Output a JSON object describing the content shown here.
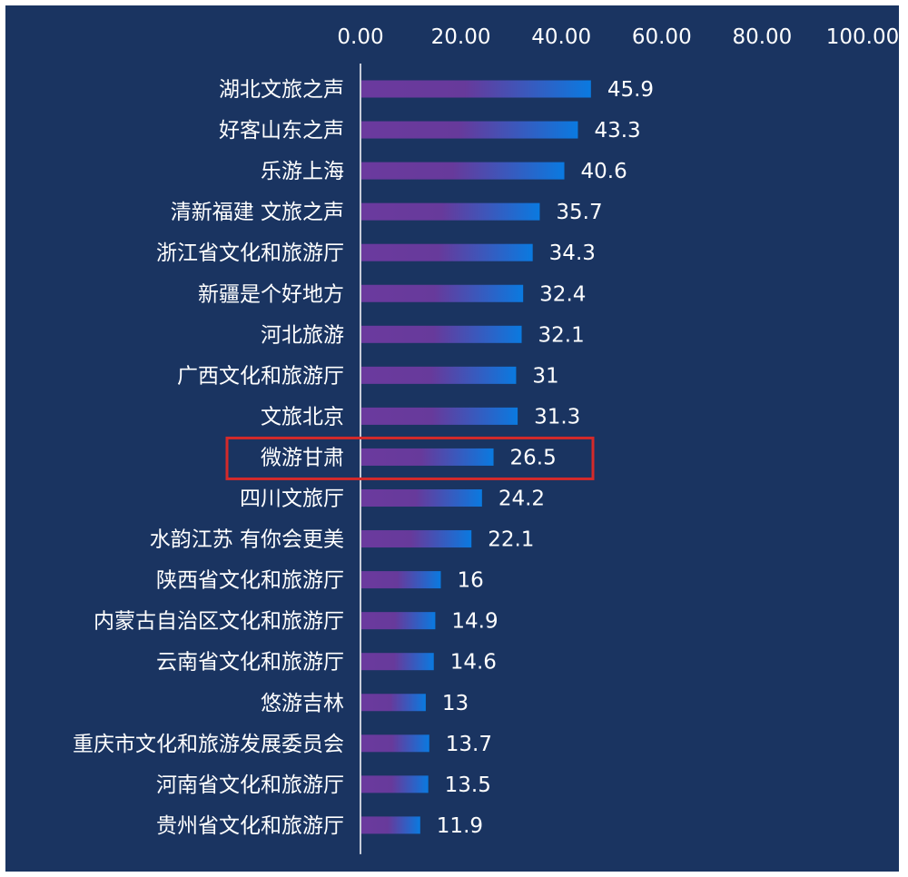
{
  "chart_data": {
    "type": "bar",
    "orientation": "horizontal",
    "title": "",
    "xlabel": "",
    "ylabel": "",
    "xlim": [
      0,
      100
    ],
    "x_ticks": [
      "0.00",
      "20.00",
      "40.00",
      "60.00",
      "80.00",
      "100.00"
    ],
    "x_axis_position": "top",
    "grid": false,
    "categories": [
      "湖北文旅之声",
      "好客山东之声",
      "乐游上海",
      "清新福建 文旅之声",
      "浙江省文化和旅游厅",
      "新疆是个好地方",
      "河北旅游",
      "广西文化和旅游厅",
      "文旅北京",
      "微游甘肃",
      "四川文旅厅",
      "水韵江苏 有你会更美",
      "陕西省文化和旅游厅",
      "内蒙古自治区文化和旅游厅",
      "云南省文化和旅游厅",
      "悠游吉林",
      "重庆市文化和旅游发展委员会",
      "河南省文化和旅游厅",
      "贵州省文化和旅游厅"
    ],
    "values": [
      45.9,
      43.3,
      40.6,
      35.7,
      34.3,
      32.4,
      32.1,
      31,
      31.3,
      26.5,
      24.2,
      22.1,
      16,
      14.9,
      14.6,
      13,
      13.7,
      13.5,
      11.9
    ],
    "value_labels": [
      "45.9",
      "43.3",
      "40.6",
      "35.7",
      "34.3",
      "32.4",
      "32.1",
      "31",
      "31.3",
      "26.5",
      "24.2",
      "22.1",
      "16",
      "14.9",
      "14.6",
      "13",
      "13.7",
      "13.5",
      "11.9"
    ],
    "highlighted_category": "微游甘肃",
    "colors": {
      "background": "#1a3461",
      "bar_start": "#6b3a9e",
      "bar_end": "#0a7ae0",
      "text": "#ffffff",
      "axis_line": "#ffffff",
      "highlight_box": "#d42a2a"
    }
  }
}
